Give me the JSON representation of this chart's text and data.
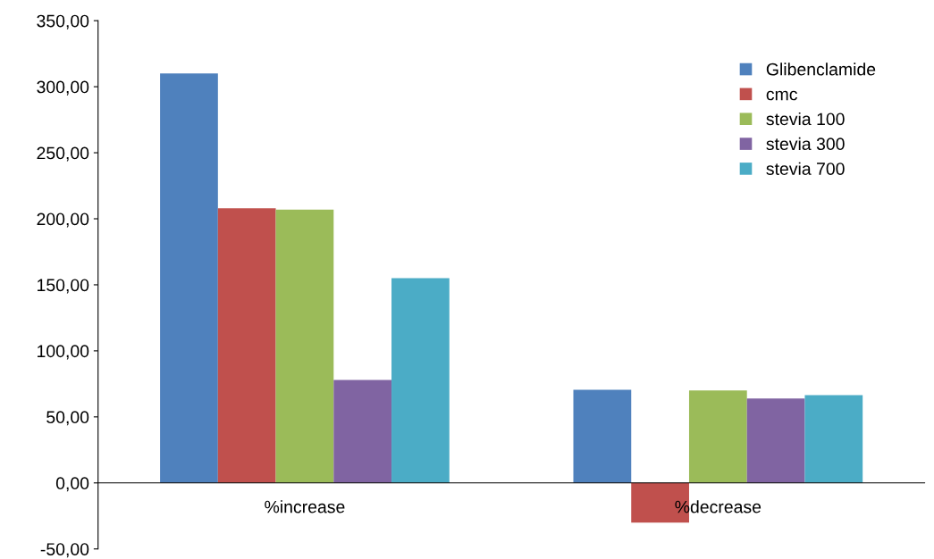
{
  "chart_data": {
    "type": "bar",
    "categories": [
      "%increase",
      "%decrease"
    ],
    "series": [
      {
        "name": "Glibenclamide",
        "color": "#4f81bd",
        "values": [
          310,
          70.5
        ]
      },
      {
        "name": "cmc",
        "color": "#c0504d",
        "values": [
          208,
          -30
        ]
      },
      {
        "name": "stevia 100",
        "color": "#9bbb59",
        "values": [
          207,
          70
        ]
      },
      {
        "name": "stevia 300",
        "color": "#8064a2",
        "values": [
          78,
          64
        ]
      },
      {
        "name": "stevia 700",
        "color": "#4bacc6",
        "values": [
          155,
          66.5
        ]
      }
    ],
    "ylim": [
      -50,
      350
    ],
    "yticks": [
      {
        "value": -50,
        "label": "-50,00"
      },
      {
        "value": 0,
        "label": "0,00"
      },
      {
        "value": 50,
        "label": "50,00"
      },
      {
        "value": 100,
        "label": "100,00"
      },
      {
        "value": 150,
        "label": "150,00"
      },
      {
        "value": 200,
        "label": "200,00"
      },
      {
        "value": 250,
        "label": "250,00"
      },
      {
        "value": 300,
        "label": "300,00"
      },
      {
        "value": 350,
        "label": "350,00"
      }
    ],
    "grid": false,
    "legend": "top right"
  }
}
